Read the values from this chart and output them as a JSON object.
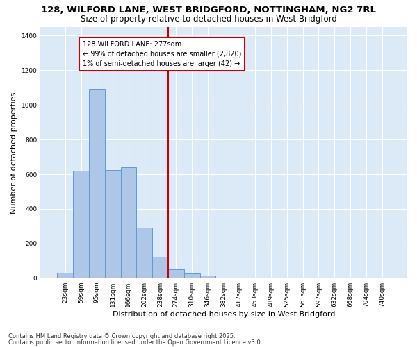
{
  "title1": "128, WILFORD LANE, WEST BRIDGFORD, NOTTINGHAM, NG2 7RL",
  "title2": "Size of property relative to detached houses in West Bridgford",
  "xlabel": "Distribution of detached houses by size in West Bridgford",
  "ylabel": "Number of detached properties",
  "categories": [
    "23sqm",
    "59sqm",
    "95sqm",
    "131sqm",
    "166sqm",
    "202sqm",
    "238sqm",
    "274sqm",
    "310sqm",
    "346sqm",
    "382sqm",
    "417sqm",
    "453sqm",
    "489sqm",
    "525sqm",
    "561sqm",
    "597sqm",
    "632sqm",
    "668sqm",
    "704sqm",
    "740sqm"
  ],
  "values": [
    30,
    620,
    1095,
    625,
    640,
    290,
    125,
    50,
    25,
    15,
    0,
    0,
    0,
    0,
    0,
    0,
    0,
    0,
    0,
    0,
    0
  ],
  "bar_color": "#aec6e8",
  "bar_edge_color": "#5b9bd5",
  "ref_line_color": "#cc0000",
  "ref_line_index": 7,
  "annotation_line1": "128 WILFORD LANE: 277sqm",
  "annotation_line2": "← 99% of detached houses are smaller (2,820)",
  "annotation_line3": "1% of semi-detached houses are larger (42) →",
  "annotation_box_color": "#cc0000",
  "plot_bg_color": "#dce9f7",
  "fig_bg_color": "#ffffff",
  "grid_color": "#ffffff",
  "ylim": [
    0,
    1450
  ],
  "yticks": [
    0,
    200,
    400,
    600,
    800,
    1000,
    1200,
    1400
  ],
  "footer1": "Contains HM Land Registry data © Crown copyright and database right 2025.",
  "footer2": "Contains public sector information licensed under the Open Government Licence v3.0.",
  "title1_fontsize": 9.5,
  "title2_fontsize": 8.5,
  "ylabel_fontsize": 8,
  "xlabel_fontsize": 8,
  "tick_fontsize": 6.5,
  "annot_fontsize": 7,
  "footer_fontsize": 6
}
